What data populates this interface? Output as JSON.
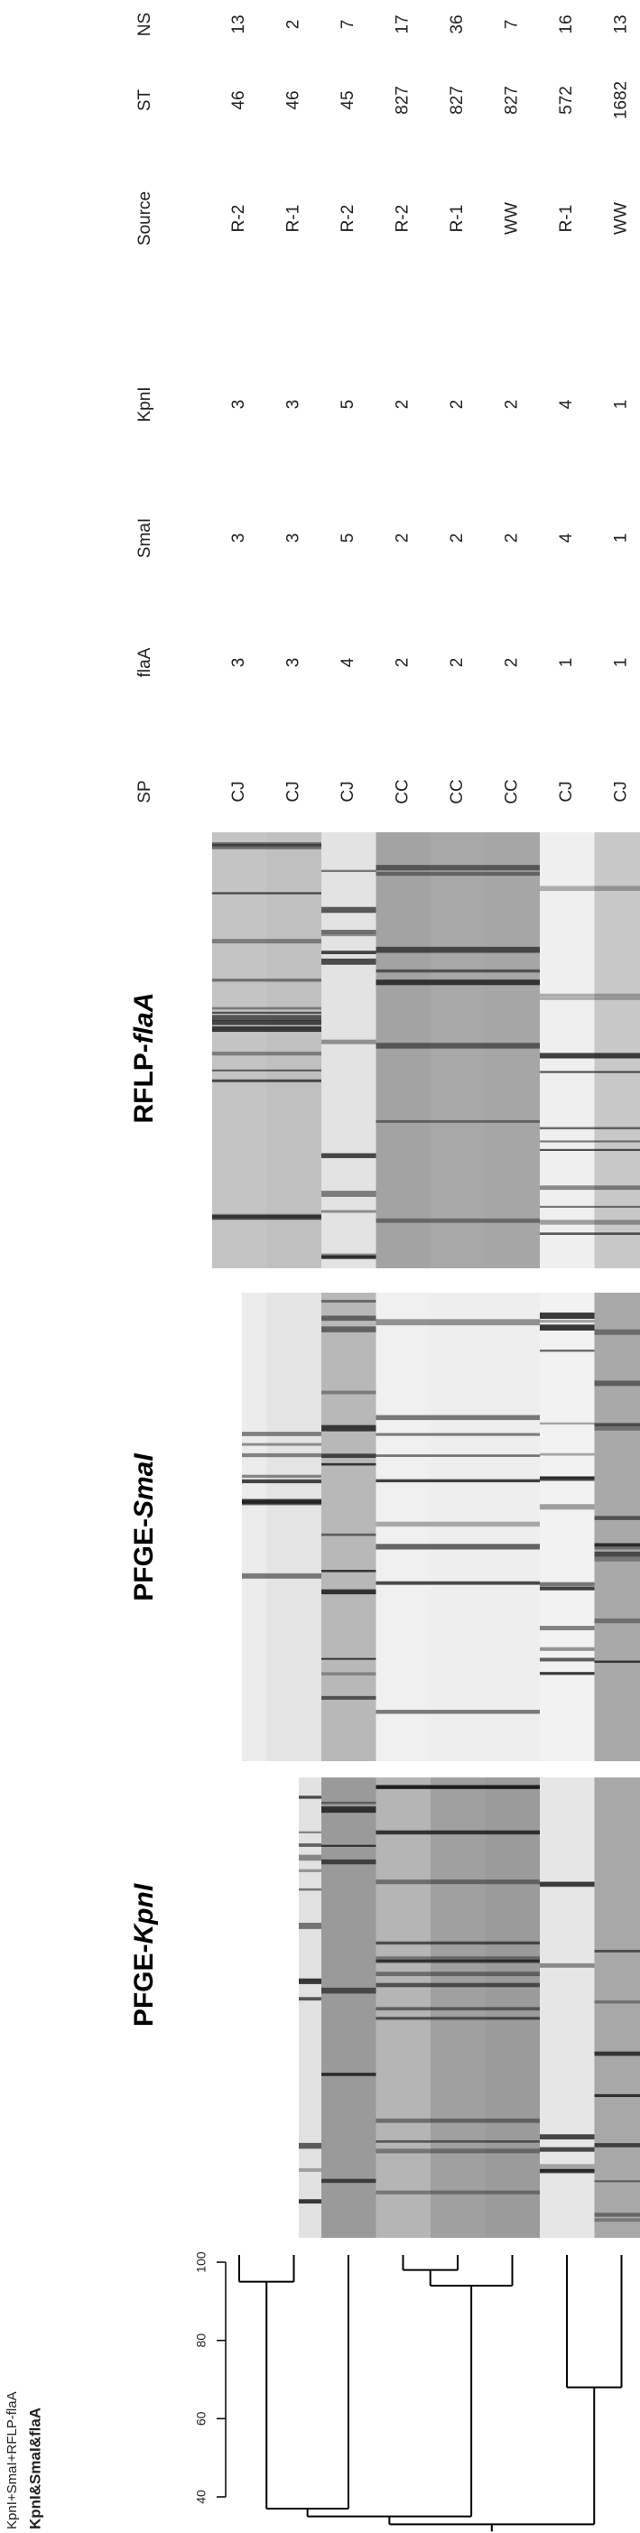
{
  "figure": {
    "dendrogram": {
      "method": "KpnI+SmaI+RFLP-flaA",
      "label": "KpnI&SmaI&flaA",
      "scale": [
        "40",
        "60",
        "80",
        "100"
      ],
      "tree": {
        "similarity": 33,
        "children": [
          {
            "similarity": 35,
            "children": [
              {
                "similarity": 37,
                "children": [
                  {
                    "similarity": 95,
                    "children": [
                      0,
                      1
                    ]
                  },
                  2
                ]
              },
              {
                "similarity": 94,
                "children": [
                  {
                    "similarity": 98,
                    "children": [
                      3,
                      4
                    ]
                  },
                  5
                ]
              }
            ]
          },
          {
            "similarity": 68,
            "children": [
              6,
              7
            ]
          }
        ]
      }
    },
    "panels": [
      {
        "prefix": "PFGE-",
        "name": "KpnI"
      },
      {
        "prefix": "PFGE-",
        "name": "SmaI"
      },
      {
        "prefix": "RFLP-",
        "name": "flaA"
      }
    ],
    "table": {
      "columns": [
        "SP",
        "flaA",
        "SmaI",
        "KpnI",
        "Source",
        "ST",
        "NS"
      ],
      "rows": [
        [
          "CJ",
          "3",
          "3",
          "3",
          "R-2",
          "46",
          "13"
        ],
        [
          "CJ",
          "3",
          "3",
          "3",
          "R-1",
          "46",
          "2"
        ],
        [
          "CJ",
          "4",
          "5",
          "5",
          "R-2",
          "45",
          "7"
        ],
        [
          "CC",
          "2",
          "2",
          "2",
          "R-2",
          "827",
          "17"
        ],
        [
          "CC",
          "2",
          "2",
          "2",
          "R-1",
          "827",
          "36"
        ],
        [
          "CC",
          "2",
          "2",
          "2",
          "WW",
          "827",
          "7"
        ],
        [
          "CJ",
          "1",
          "4",
          "4",
          "R-1",
          "572",
          "16"
        ],
        [
          "CJ",
          "1",
          "1",
          "1",
          "WW",
          "1682",
          "13"
        ]
      ]
    }
  }
}
